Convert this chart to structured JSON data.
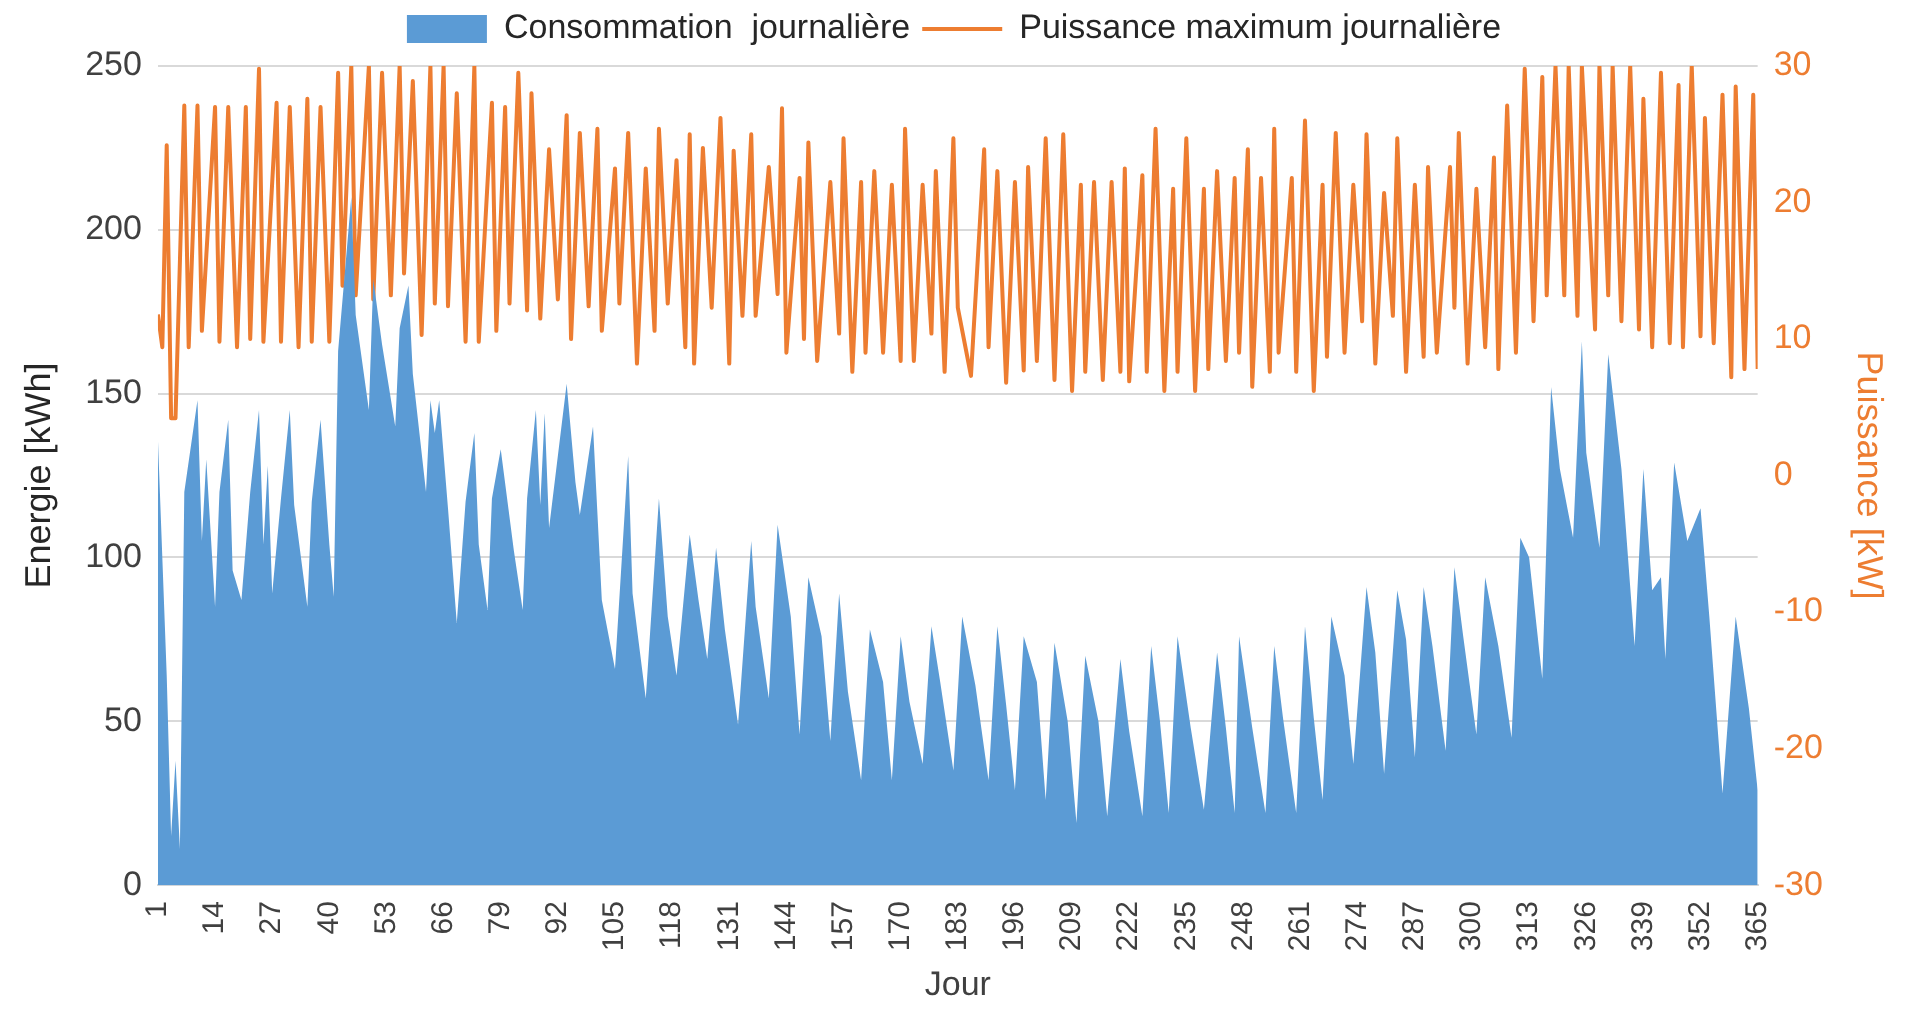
{
  "chart_data": {
    "type": "area",
    "xlabel": "Jour",
    "ylabel": "Energie [kWh]",
    "y2label": "Puissance [kW]",
    "xlim": [
      1,
      365
    ],
    "xticks": [
      1,
      14,
      27,
      40,
      53,
      66,
      79,
      92,
      105,
      118,
      131,
      144,
      157,
      170,
      183,
      196,
      209,
      222,
      235,
      248,
      261,
      274,
      287,
      300,
      313,
      326,
      339,
      352,
      365
    ],
    "ylim": [
      0,
      250
    ],
    "yticks": [
      0,
      50,
      100,
      150,
      200,
      250
    ],
    "y2lim": [
      -30,
      30
    ],
    "y2ticks": [
      -30,
      -20,
      -10,
      0,
      10,
      20,
      30
    ],
    "grid": "y",
    "legend": "top",
    "series": [
      {
        "name": "Consommation  journalière",
        "color": "#5b9bd5",
        "x": [
          1,
          3,
          4,
          5,
          6,
          7,
          10,
          11,
          12,
          14,
          15,
          17,
          18,
          20,
          22,
          24,
          25,
          26,
          27,
          29,
          31,
          32,
          35,
          36,
          38,
          40,
          41,
          42,
          45,
          46,
          49,
          50,
          52,
          55,
          56,
          58,
          59,
          62,
          63,
          64,
          65,
          67,
          69,
          71,
          73,
          74,
          76,
          77,
          79,
          82,
          84,
          85,
          87,
          88,
          89,
          90,
          94,
          96,
          97,
          100,
          102,
          105,
          108,
          109,
          112,
          115,
          117,
          119,
          122,
          124,
          126,
          128,
          130,
          133,
          136,
          137,
          140,
          142,
          145,
          147,
          149,
          152,
          154,
          156,
          158,
          161,
          163,
          166,
          168,
          170,
          172,
          175,
          177,
          179,
          182,
          184,
          187,
          190,
          192,
          194,
          196,
          198,
          201,
          203,
          205,
          208,
          210,
          212,
          215,
          217,
          220,
          222,
          225,
          227,
          229,
          231,
          233,
          236,
          239,
          242,
          244,
          246,
          247,
          250,
          253,
          255,
          257,
          260,
          262,
          264,
          266,
          268,
          271,
          273,
          276,
          278,
          280,
          283,
          285,
          287,
          289,
          291,
          294,
          296,
          298,
          301,
          303,
          306,
          309,
          311,
          313,
          316,
          318,
          320,
          323,
          325,
          326,
          329,
          331,
          334,
          337,
          339,
          341,
          343,
          344,
          346,
          349,
          352,
          354,
          357,
          360,
          363,
          365
        ],
        "values": [
          136,
          64,
          15,
          38,
          11,
          120,
          148,
          105,
          130,
          85,
          120,
          142,
          96,
          87,
          120,
          145,
          104,
          128,
          89,
          118,
          145,
          116,
          85,
          117,
          142,
          104,
          88,
          163,
          210,
          174,
          145,
          185,
          165,
          140,
          170,
          183,
          156,
          120,
          148,
          138,
          148,
          115,
          80,
          117,
          138,
          104,
          84,
          118,
          133,
          102,
          84,
          118,
          145,
          116,
          144,
          109,
          153,
          123,
          113,
          140,
          87,
          66,
          131,
          89,
          57,
          118,
          82,
          64,
          107,
          87,
          69,
          103,
          78,
          49,
          105,
          85,
          57,
          110,
          82,
          46,
          94,
          76,
          44,
          89,
          59,
          32,
          78,
          62,
          32,
          76,
          56,
          37,
          79,
          62,
          35,
          82,
          61,
          32,
          79,
          55,
          29,
          76,
          62,
          26,
          74,
          50,
          19,
          70,
          50,
          21,
          69,
          47,
          21,
          73,
          50,
          22,
          76,
          48,
          23,
          71,
          48,
          22,
          76,
          48,
          22,
          73,
          51,
          22,
          79,
          51,
          26,
          82,
          64,
          37,
          91,
          71,
          34,
          90,
          75,
          39,
          91,
          73,
          41,
          97,
          76,
          46,
          94,
          73,
          45,
          106,
          100,
          63,
          152,
          127,
          106,
          166,
          132,
          103,
          162,
          127,
          73,
          127,
          90,
          94,
          69,
          129,
          105,
          115,
          82,
          28,
          82,
          54,
          29
        ]
      },
      {
        "name": "Puissance maximum journalière",
        "type": "line",
        "axis": "y2",
        "color": "#ed7d31",
        "x": [
          1,
          2,
          3,
          4,
          5,
          7,
          8,
          10,
          11,
          14,
          15,
          17,
          19,
          21,
          22,
          24,
          25,
          28,
          29,
          31,
          33,
          35,
          36,
          38,
          40,
          42,
          43,
          45,
          46,
          49,
          50,
          52,
          54,
          56,
          57,
          59,
          61,
          63,
          64,
          66,
          67,
          69,
          71,
          73,
          74,
          77,
          78,
          80,
          81,
          83,
          85,
          86,
          88,
          90,
          92,
          94,
          95,
          97,
          99,
          101,
          102,
          105,
          106,
          108,
          110,
          112,
          114,
          115,
          117,
          119,
          121,
          122,
          123,
          125,
          127,
          129,
          131,
          132,
          134,
          136,
          137,
          140,
          142,
          143,
          144,
          147,
          148,
          149,
          151,
          154,
          156,
          157,
          159,
          161,
          162,
          164,
          166,
          168,
          170,
          171,
          173,
          175,
          177,
          178,
          180,
          182,
          183,
          186,
          189,
          190,
          192,
          194,
          196,
          198,
          199,
          201,
          203,
          205,
          207,
          209,
          211,
          212,
          214,
          216,
          218,
          220,
          221,
          222,
          225,
          226,
          228,
          230,
          232,
          233,
          235,
          237,
          239,
          240,
          242,
          244,
          246,
          247,
          249,
          250,
          252,
          254,
          255,
          256,
          259,
          260,
          262,
          264,
          266,
          267,
          269,
          271,
          273,
          275,
          276,
          278,
          280,
          282,
          283,
          285,
          287,
          289,
          290,
          292,
          295,
          296,
          297,
          299,
          301,
          303,
          305,
          306,
          308,
          310,
          312,
          314,
          316,
          317,
          319,
          321,
          322,
          324,
          325,
          328,
          329,
          331,
          332,
          334,
          336,
          338,
          339,
          341,
          343,
          345,
          347,
          348,
          350,
          352,
          353,
          355,
          357,
          359,
          360,
          362,
          364,
          365
        ],
        "values": [
          11.8,
          9.4,
          24.2,
          4.2,
          4.2,
          27.1,
          9.4,
          27.1,
          10.6,
          27.0,
          9.8,
          27.0,
          9.4,
          27.0,
          10.0,
          29.8,
          9.8,
          27.3,
          9.8,
          27.0,
          9.4,
          27.6,
          9.8,
          27.0,
          9.8,
          29.5,
          13.9,
          30.0,
          13.2,
          30.0,
          12.9,
          29.5,
          13.2,
          30.0,
          14.8,
          28.9,
          10.3,
          30.0,
          12.6,
          30.0,
          12.4,
          28.0,
          9.8,
          30.0,
          9.8,
          27.3,
          10.6,
          27.0,
          12.6,
          29.5,
          12.1,
          28.0,
          11.5,
          23.9,
          12.9,
          26.4,
          10.0,
          25.1,
          12.4,
          25.4,
          10.6,
          22.5,
          12.6,
          25.1,
          8.2,
          22.5,
          10.6,
          25.4,
          12.6,
          23.1,
          9.4,
          25.0,
          8.2,
          24.0,
          12.3,
          26.2,
          8.2,
          23.8,
          11.7,
          25.0,
          11.7,
          22.6,
          13.3,
          26.9,
          9.0,
          21.8,
          10.0,
          24.4,
          8.4,
          21.5,
          10.4,
          24.7,
          7.6,
          21.5,
          9.0,
          22.3,
          9.0,
          21.3,
          8.4,
          25.4,
          8.4,
          21.3,
          10.4,
          22.3,
          7.6,
          24.7,
          12.3,
          7.3,
          23.9,
          9.4,
          22.3,
          6.8,
          21.5,
          7.7,
          22.6,
          8.4,
          24.7,
          7.0,
          25.0,
          6.2,
          21.3,
          7.6,
          21.5,
          7.0,
          21.5,
          7.6,
          22.5,
          6.9,
          22.0,
          7.6,
          25.4,
          6.2,
          21.0,
          7.6,
          24.7,
          6.2,
          21.0,
          7.8,
          22.3,
          8.4,
          21.8,
          9.0,
          23.9,
          6.5,
          21.8,
          7.6,
          25.4,
          9.0,
          21.8,
          7.6,
          26.0,
          6.2,
          21.3,
          8.7,
          25.1,
          9.0,
          21.3,
          11.3,
          25.0,
          8.2,
          20.7,
          11.7,
          24.7,
          7.6,
          21.3,
          8.7,
          22.6,
          9.0,
          22.6,
          12.3,
          25.1,
          8.2,
          21.0,
          9.4,
          23.3,
          7.8,
          27.1,
          9.0,
          29.8,
          11.3,
          29.2,
          13.2,
          30.0,
          13.2,
          30.0,
          11.7,
          30.0,
          10.7,
          30.0,
          13.2,
          30.0,
          11.3,
          30.0,
          10.7,
          27.6,
          9.4,
          29.5,
          9.7,
          28.6,
          9.4,
          30.0,
          10.2,
          26.2,
          9.7,
          27.9,
          7.2,
          28.5,
          7.8,
          27.9,
          7.8
        ]
      }
    ]
  }
}
